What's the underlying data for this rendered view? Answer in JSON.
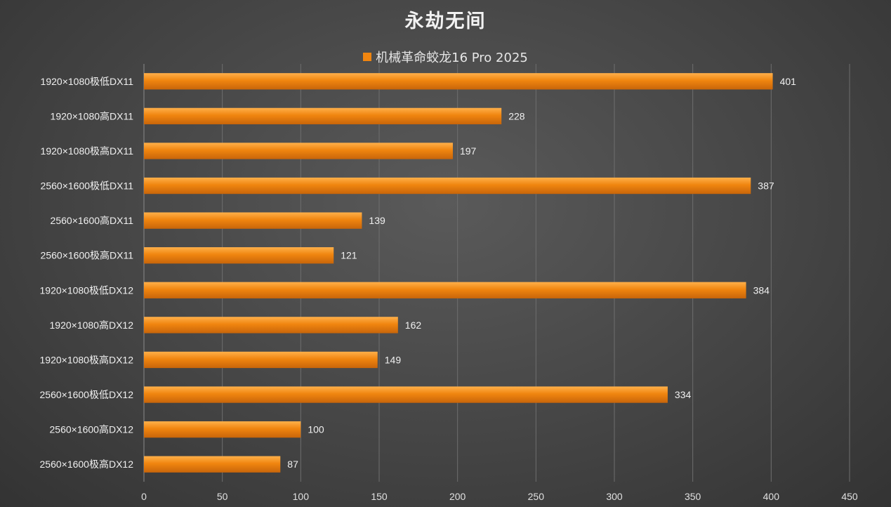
{
  "chart_data": {
    "type": "bar",
    "orientation": "horizontal",
    "title": "永劫无间",
    "categories": [
      "1920×1080极低DX11",
      "1920×1080高DX11",
      "1920×1080极高DX11",
      "2560×1600极低DX11",
      "2560×1600高DX11",
      "2560×1600极高DX11",
      "1920×1080极低DX12",
      "1920×1080高DX12",
      "1920×1080极高DX12",
      "2560×1600极低DX12",
      "2560×1600高DX12",
      "2560×1600极高DX12"
    ],
    "series": [
      {
        "name": "机械革命蛟龙16 Pro 2025",
        "values": [
          401,
          228,
          197,
          387,
          139,
          121,
          384,
          162,
          149,
          334,
          100,
          87
        ],
        "color": "#f0850f"
      }
    ],
    "xlim": [
      0,
      450
    ],
    "xticks": [
      0,
      50,
      100,
      150,
      200,
      250,
      300,
      350,
      400,
      450
    ],
    "grid": true,
    "legend_position": "top",
    "data_labels": true
  }
}
